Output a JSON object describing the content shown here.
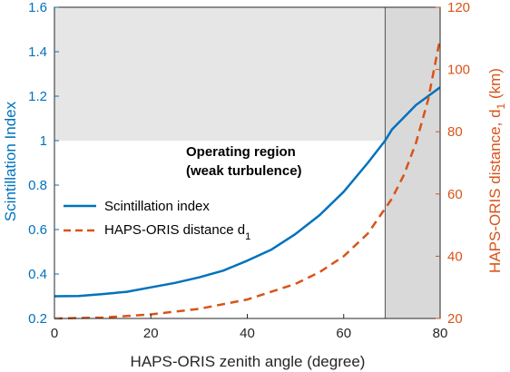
{
  "chart_data": {
    "type": "line",
    "xlabel": "HAPS-ORIS zenith angle (degree)",
    "ylabel_left": "Scintillation Index",
    "ylabel_right_main": "HAPS-ORIS distance, d",
    "ylabel_right_sub": "1",
    "ylabel_right_unit": " (km)",
    "xlim": [
      0,
      80
    ],
    "ylim_left": [
      0.2,
      1.6
    ],
    "ylim_right": [
      20,
      120
    ],
    "x_ticks": [
      "0",
      "20",
      "40",
      "60",
      "80"
    ],
    "y_left_ticks": [
      "0.2",
      "0.4",
      "0.6",
      "0.8",
      "1",
      "1.2",
      "1.4",
      "1.6"
    ],
    "y_right_ticks": [
      "20",
      "40",
      "60",
      "80",
      "100",
      "120"
    ],
    "annotation_lines": [
      "Operating region",
      "(weak turbulence)"
    ],
    "legend": {
      "position": "center-left",
      "entries": [
        {
          "text": "Scintillation index",
          "sub": ""
        },
        {
          "text": "HAPS-ORIS distance d",
          "sub": "1"
        }
      ]
    },
    "shaded_regions": [
      {
        "axis": "y-left",
        "from": 1.0,
        "to": 1.6,
        "color": "#e6e6e6"
      },
      {
        "axis": "x",
        "from": 68.6,
        "to": 80,
        "color": "#d9d9d9"
      }
    ],
    "series": [
      {
        "axis": "left",
        "style": "solid",
        "color": "#0072bd",
        "x": [
          0,
          5,
          10,
          15,
          20,
          25,
          30,
          35,
          40,
          45,
          50,
          55,
          60,
          65,
          68.6,
          70,
          75,
          80
        ],
        "y": [
          0.3,
          0.301,
          0.31,
          0.32,
          0.34,
          0.36,
          0.385,
          0.415,
          0.46,
          0.51,
          0.58,
          0.665,
          0.77,
          0.9,
          1.0,
          1.05,
          1.16,
          1.24
        ]
      },
      {
        "axis": "right",
        "style": "dashed",
        "color": "#d95319",
        "x": [
          0,
          10,
          20,
          30,
          40,
          50,
          55,
          60,
          65,
          70,
          72.5,
          75,
          77.5,
          80
        ],
        "y": [
          20,
          20.3,
          21.3,
          23.1,
          26.1,
          31.1,
          34.9,
          40,
          47.3,
          58.5,
          66.2,
          76.4,
          90.2,
          110
        ]
      }
    ]
  }
}
